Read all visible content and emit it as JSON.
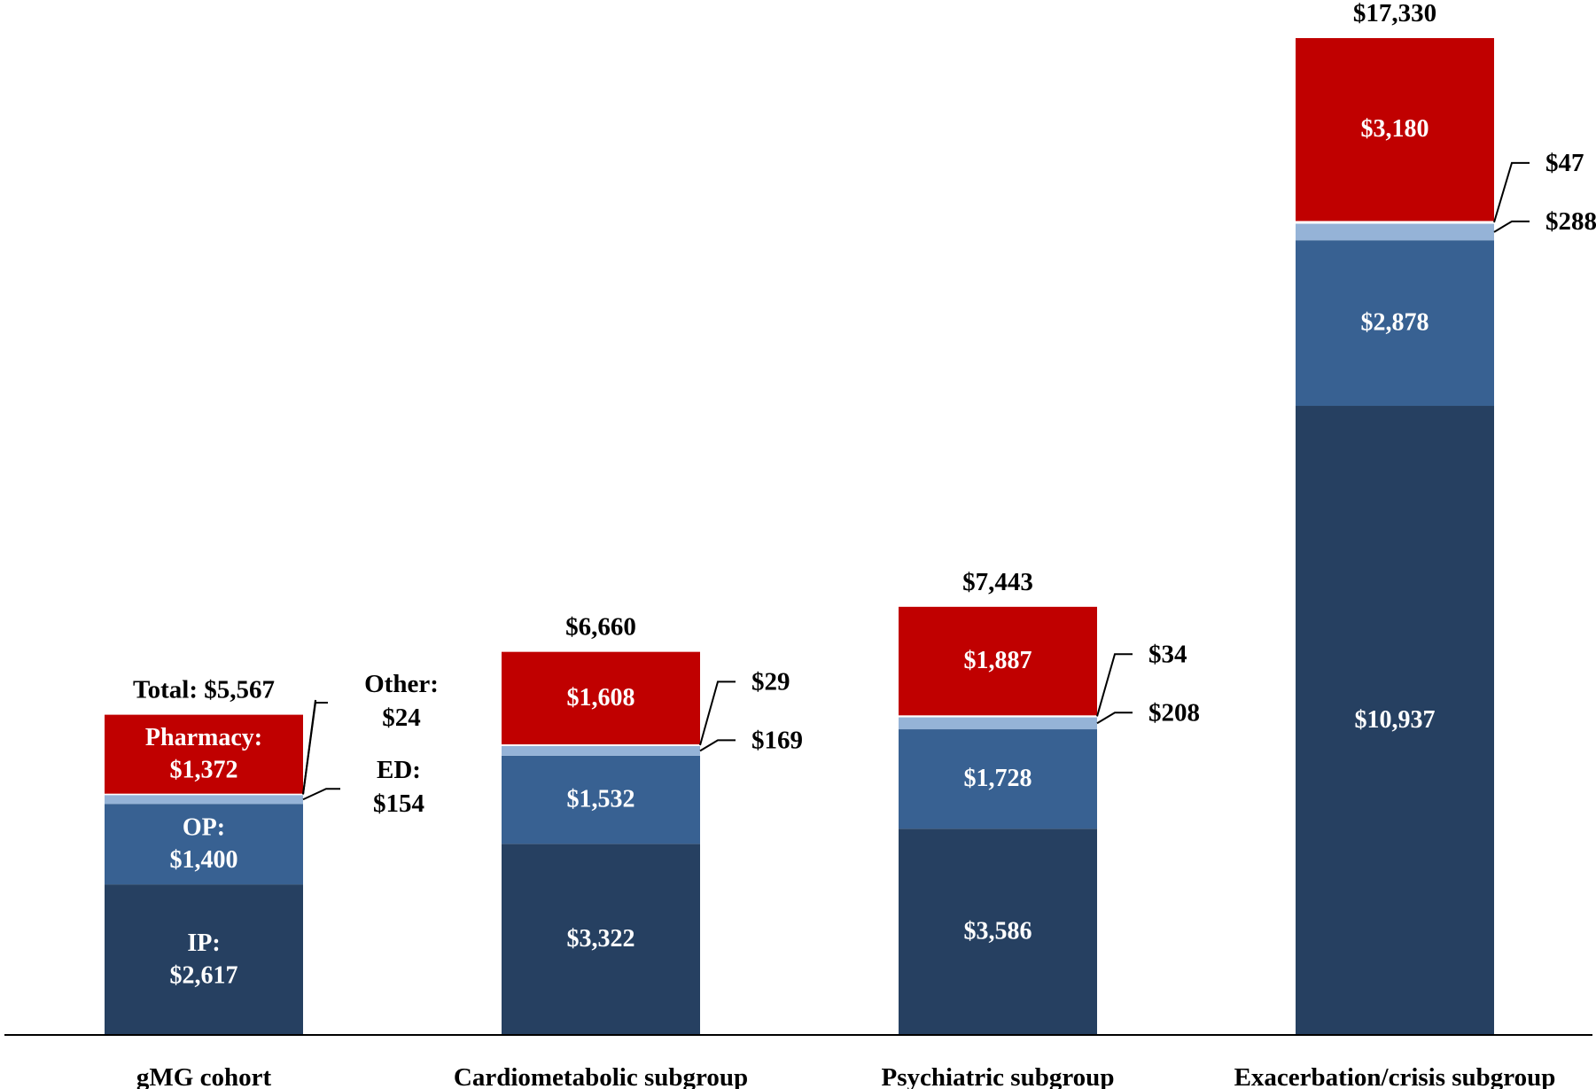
{
  "chart_data": {
    "type": "bar",
    "stacked": true,
    "title": "",
    "xlabel": "",
    "ylabel": "",
    "ylim": [
      0,
      17330
    ],
    "grid": false,
    "legend": "none",
    "categories": [
      "gMG cohort",
      "Cardiometabolic subgroup",
      "Psychiatric subgroup",
      "Exacerbation/crisis subgroup"
    ],
    "totals": [
      5567,
      6660,
      7443,
      17330
    ],
    "total_labels": [
      "Total: $5,567",
      "$6,660",
      "$7,443",
      "$17,330"
    ],
    "series": [
      {
        "name": "IP",
        "color": "#264061",
        "values": [
          2617,
          3322,
          3586,
          10937
        ],
        "labels": [
          [
            "IP:",
            "$2,617"
          ],
          [
            "$3,322"
          ],
          [
            "$3,586"
          ],
          [
            "$10,937"
          ]
        ]
      },
      {
        "name": "OP",
        "color": "#386192",
        "values": [
          1400,
          1532,
          1728,
          2878
        ],
        "labels": [
          [
            "OP:",
            "$1,400"
          ],
          [
            "$1,532"
          ],
          [
            "$1,728"
          ],
          [
            "$2,878"
          ]
        ]
      },
      {
        "name": "ED",
        "color": "#95B3D7",
        "values": [
          154,
          169,
          208,
          288
        ],
        "labels": [
          [
            "ED:",
            "$154"
          ],
          [
            "$169"
          ],
          [
            "$208"
          ],
          [
            "$288"
          ]
        ]
      },
      {
        "name": "Other",
        "color": "#FFFFFF",
        "values": [
          24,
          29,
          34,
          47
        ],
        "labels": [
          [
            "Other:",
            "$24"
          ],
          [
            "$29"
          ],
          [
            "$34"
          ],
          [
            "$47"
          ]
        ]
      },
      {
        "name": "Pharmacy",
        "color": "#C00000",
        "values": [
          1372,
          1608,
          1887,
          3180
        ],
        "labels": [
          [
            "Pharmacy:",
            "$1,372"
          ],
          [
            "$1,608"
          ],
          [
            "$1,887"
          ],
          [
            "$3,180"
          ]
        ]
      }
    ],
    "inside_label_colors": [
      "#FFFFFF",
      "#FFFFFF",
      null,
      null,
      "#FFFFFF"
    ],
    "callout_series": [
      "ED",
      "Other"
    ]
  }
}
